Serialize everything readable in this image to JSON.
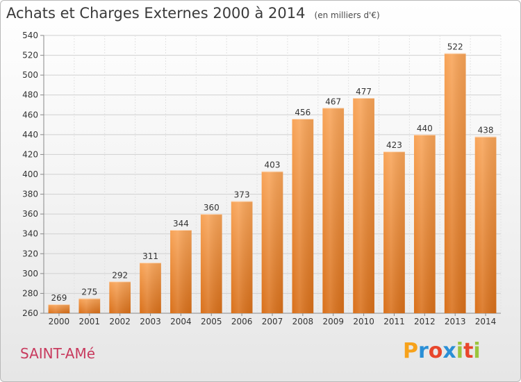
{
  "chart_data": {
    "type": "bar",
    "title": "Achats et Charges Externes 2000 à 2014",
    "subtitle": "(en milliers d'€)",
    "categories": [
      "2000",
      "2001",
      "2002",
      "2003",
      "2004",
      "2005",
      "2006",
      "2007",
      "2008",
      "2009",
      "2010",
      "2011",
      "2012",
      "2013",
      "2014"
    ],
    "values": [
      269,
      275,
      292,
      311,
      344,
      360,
      373,
      403,
      456,
      467,
      477,
      423,
      440,
      522,
      438
    ],
    "ylim": [
      260,
      540
    ],
    "yticks": [
      260,
      280,
      300,
      320,
      340,
      360,
      380,
      400,
      420,
      440,
      460,
      480,
      500,
      520,
      540
    ],
    "grid": true,
    "legend": "none",
    "bar_color": "#f28a2c"
  },
  "footer": {
    "place": "SAINT-AMé",
    "brand": "Proxiti",
    "brand_colors": [
      "#f7a21b",
      "#2a8fd6",
      "#e8462c",
      "#2a8fd6",
      "#9bc53d",
      "#e8462c",
      "#9bc53d"
    ]
  }
}
